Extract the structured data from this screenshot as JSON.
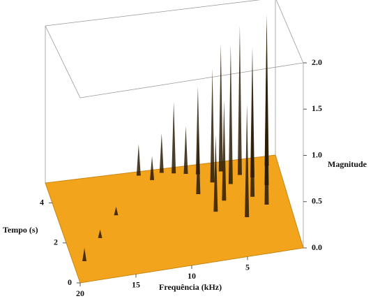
{
  "chart_data": {
    "type": "surface3d",
    "x_label": "Frequência (kHz)",
    "y_label": "Tempo (s)",
    "z_label": "Magnitude",
    "xlim": [
      20,
      0
    ],
    "xticks": [
      20,
      15,
      10,
      5
    ],
    "ylim": [
      0,
      5
    ],
    "yticks": [
      0,
      2,
      4
    ],
    "zlim": [
      0,
      2
    ],
    "zticks": [
      {
        "value": 0,
        "label": "0.0"
      },
      0.5,
      {
        "value": 1,
        "label": "1.0"
      },
      1.5,
      {
        "value": 2,
        "label": "2.0"
      }
    ],
    "surface_color": "#f2a41c",
    "peak_color": "#2b1c05",
    "x": [
      1.0,
      1.5,
      2.0,
      2.5,
      3.0,
      3.5,
      4.0,
      4.5,
      5.0,
      5.5,
      6.0,
      6.5,
      7.0,
      7.5,
      8.0,
      9.0,
      10.0,
      11.0,
      12.0,
      15.0,
      17.0,
      19.0
    ],
    "y": [
      4.5,
      3.5,
      2.5,
      4.0,
      3.0,
      4.2,
      2.0,
      3.8,
      4.5,
      3.0,
      4.0,
      2.5,
      4.5,
      3.5,
      4.6,
      4.7,
      4.8,
      4.5,
      4.8,
      3.0,
      2.0,
      1.0
    ],
    "values": [
      1.9,
      1.95,
      1.8,
      1.6,
      1.5,
      1.85,
      1.3,
      1.7,
      1.6,
      1.2,
      1.4,
      0.9,
      1.1,
      0.8,
      0.6,
      0.9,
      0.5,
      0.3,
      0.4,
      0.1,
      0.1,
      0.15
    ]
  }
}
